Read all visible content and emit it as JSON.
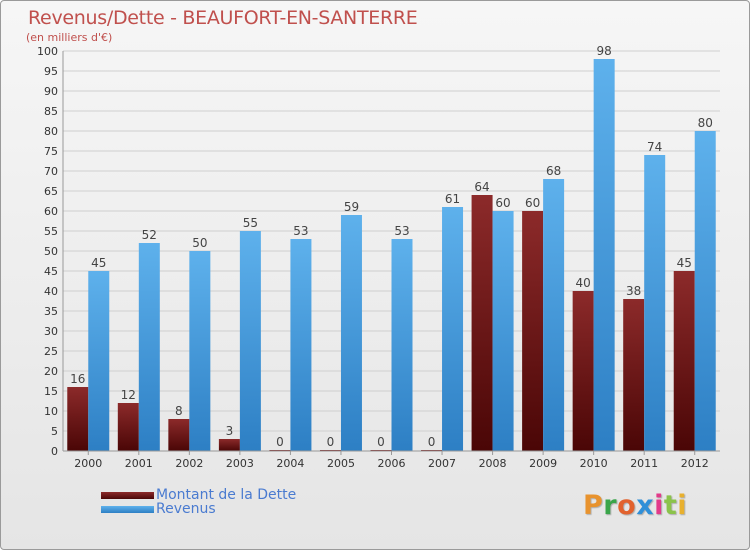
{
  "title": "Revenus/Dette - BEAUFORT-EN-SANTERRE",
  "subtitle": "(en milliers d'€)",
  "logo": "Proxiti",
  "colors": {
    "dette": "#7a1818",
    "revenus": "#4aa0e0",
    "axis_text": "#333333",
    "grid": "#cfcfcf",
    "title": "#c0504d",
    "legend_text": "#4a7bd0"
  },
  "legend": [
    {
      "label": "Montant de la Dette",
      "color": "#6b1010"
    },
    {
      "label": "Revenus",
      "color": "#4aa0e0"
    }
  ],
  "chart_data": {
    "type": "bar",
    "title": "Revenus/Dette - BEAUFORT-EN-SANTERRE",
    "subtitle": "(en milliers d'€)",
    "categories": [
      "2000",
      "2001",
      "2002",
      "2003",
      "2004",
      "2005",
      "2006",
      "2007",
      "2008",
      "2009",
      "2010",
      "2011",
      "2012"
    ],
    "series": [
      {
        "name": "Montant de la Dette",
        "values": [
          16,
          12,
          8,
          3,
          0,
          0,
          0,
          0,
          64,
          60,
          40,
          38,
          45
        ]
      },
      {
        "name": "Revenus",
        "values": [
          45,
          52,
          50,
          55,
          53,
          59,
          53,
          61,
          60,
          68,
          98,
          74,
          80
        ]
      }
    ],
    "ylim": [
      0,
      100
    ],
    "yticks": [
      0,
      5,
      10,
      15,
      20,
      25,
      30,
      35,
      40,
      45,
      50,
      55,
      60,
      65,
      70,
      75,
      80,
      85,
      90,
      95,
      100
    ],
    "grid": true,
    "legend_position": "bottom-left"
  }
}
